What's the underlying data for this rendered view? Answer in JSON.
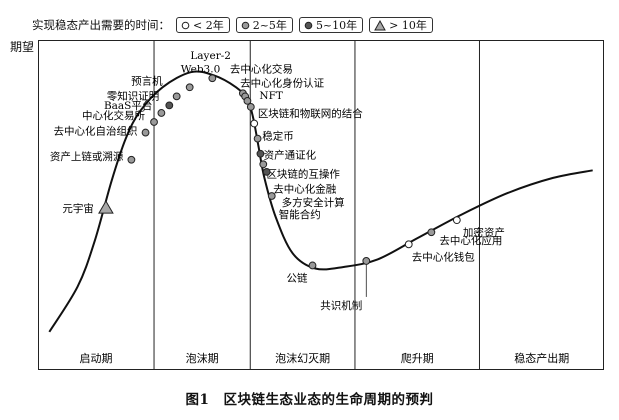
{
  "legend": {
    "title": "实现稳态产出需要的时间：",
    "items": [
      {
        "marker": "open-circle",
        "label": "< 2年"
      },
      {
        "marker": "gray-circle",
        "label": "2~5年"
      },
      {
        "marker": "dark-circle",
        "label": "5~10年"
      },
      {
        "marker": "triangle",
        "label": "> 10年"
      }
    ]
  },
  "caption": {
    "number": "图1",
    "text": "区块链生态业态的生命周期的预判"
  },
  "colors": {
    "open": "#ffffff",
    "gray": "#9a9a9a",
    "dark": "#555555",
    "triangle": "#a8a8a8",
    "stroke": "#222222"
  },
  "chart_data": {
    "type": "line",
    "ylabel": "期望",
    "phases": [
      "启动期",
      "泡沫期",
      "泡沫幻灭期",
      "爬升期",
      "稳态产出期"
    ],
    "curve": [
      [
        0.02,
        0.05
      ],
      [
        0.07,
        0.2
      ],
      [
        0.1,
        0.35
      ],
      [
        0.13,
        0.55
      ],
      [
        0.155,
        0.69
      ],
      [
        0.18,
        0.78
      ],
      [
        0.22,
        0.86
      ],
      [
        0.27,
        0.91
      ],
      [
        0.31,
        0.9
      ],
      [
        0.35,
        0.86
      ],
      [
        0.37,
        0.82
      ],
      [
        0.38,
        0.76
      ],
      [
        0.39,
        0.66
      ],
      [
        0.4,
        0.56
      ],
      [
        0.42,
        0.43
      ],
      [
        0.45,
        0.31
      ],
      [
        0.49,
        0.26
      ],
      [
        0.54,
        0.265
      ],
      [
        0.6,
        0.29
      ],
      [
        0.67,
        0.36
      ],
      [
        0.75,
        0.44
      ],
      [
        0.83,
        0.51
      ],
      [
        0.91,
        0.56
      ],
      [
        0.98,
        0.585
      ]
    ],
    "points": [
      {
        "label": "元宇宙",
        "marker": "triangle",
        "x": 0.12,
        "y": 0.46
      },
      {
        "label": "资产上链或溯源",
        "marker": "gray",
        "x": 0.165,
        "y": 0.62
      },
      {
        "label": "去中心化自治组织",
        "marker": "gray",
        "x": 0.19,
        "y": 0.71
      },
      {
        "label": "中心化交易所",
        "marker": "gray",
        "x": 0.205,
        "y": 0.745
      },
      {
        "label": "BaaS平台",
        "marker": "gray",
        "x": 0.218,
        "y": 0.775
      },
      {
        "label": "零知识证明",
        "marker": "dark",
        "x": 0.232,
        "y": 0.8
      },
      {
        "label": "预言机",
        "marker": "gray",
        "x": 0.245,
        "y": 0.83
      },
      {
        "label": "Web3.0",
        "marker": "gray",
        "x": 0.268,
        "y": 0.86
      },
      {
        "label": "Layer-2",
        "marker": "gray",
        "x": 0.308,
        "y": 0.89
      },
      {
        "label": "去中心化交易",
        "marker": "gray",
        "x": 0.362,
        "y": 0.84
      },
      {
        "label": "去中心化身份认证",
        "marker": "gray",
        "x": 0.366,
        "y": 0.83
      },
      {
        "label": "NFT",
        "marker": "gray",
        "x": 0.37,
        "y": 0.815
      },
      {
        "label": "区块链和物联网的结合",
        "marker": "gray",
        "x": 0.376,
        "y": 0.795
      },
      {
        "label": "稳定币",
        "marker": "open",
        "x": 0.382,
        "y": 0.74
      },
      {
        "label": "资产通证化",
        "marker": "gray",
        "x": 0.388,
        "y": 0.69
      },
      {
        "label": "区块链的互操作",
        "marker": "dark",
        "x": 0.393,
        "y": 0.64
      },
      {
        "label": "去中心化金融",
        "marker": "gray",
        "x": 0.398,
        "y": 0.605
      },
      {
        "label": "多方安全计算",
        "marker": "dark",
        "x": 0.404,
        "y": 0.58
      },
      {
        "label": "智能合约",
        "marker": "gray",
        "x": 0.413,
        "y": 0.5
      },
      {
        "label": "公链",
        "marker": "gray",
        "x": 0.485,
        "y": 0.27
      },
      {
        "label": "共识机制",
        "marker": "gray",
        "x": 0.58,
        "y": 0.285
      },
      {
        "label": "去中心化钱包",
        "marker": "open",
        "x": 0.655,
        "y": 0.34
      },
      {
        "label": "去中心化应用",
        "marker": "gray",
        "x": 0.695,
        "y": 0.38
      },
      {
        "label": "加密资产",
        "marker": "open",
        "x": 0.74,
        "y": 0.42
      }
    ]
  }
}
